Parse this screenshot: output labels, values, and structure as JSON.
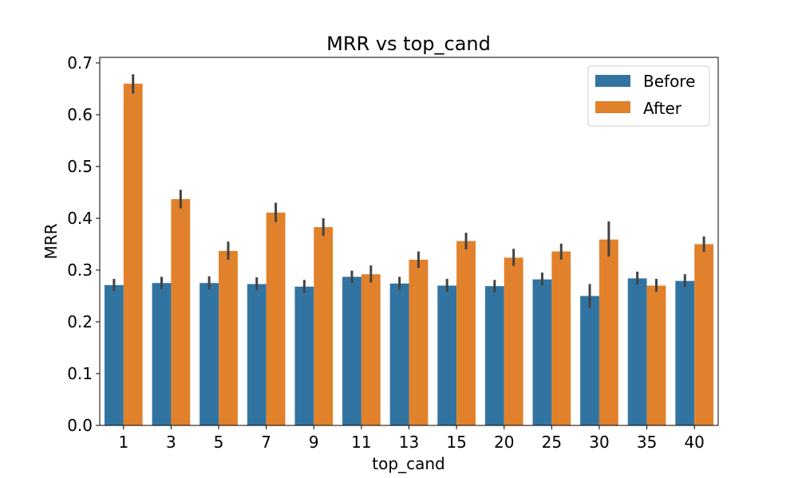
{
  "chart_data": {
    "type": "bar",
    "title": "MRR vs top_cand",
    "xlabel": "top_cand",
    "ylabel": "MRR",
    "ylim": [
      0,
      0.7
    ],
    "yticks": [
      "0.0",
      "0.1",
      "0.2",
      "0.3",
      "0.4",
      "0.5",
      "0.6",
      "0.7"
    ],
    "ytick_values": [
      0,
      0.1,
      0.2,
      0.3,
      0.4,
      0.5,
      0.6,
      0.7
    ],
    "categories": [
      "1",
      "3",
      "5",
      "7",
      "9",
      "11",
      "13",
      "15",
      "20",
      "25",
      "30",
      "35",
      "40"
    ],
    "legend_position": "top-right",
    "grid": false,
    "series": [
      {
        "name": "Before",
        "color": "#3274a1",
        "values": [
          0.271,
          0.275,
          0.275,
          0.273,
          0.268,
          0.287,
          0.274,
          0.27,
          0.269,
          0.282,
          0.25,
          0.284,
          0.279
        ],
        "err_low": [
          0.259,
          0.263,
          0.263,
          0.261,
          0.256,
          0.275,
          0.262,
          0.258,
          0.257,
          0.27,
          0.227,
          0.272,
          0.267
        ],
        "err_high": [
          0.283,
          0.287,
          0.288,
          0.286,
          0.281,
          0.299,
          0.287,
          0.283,
          0.281,
          0.295,
          0.273,
          0.297,
          0.292
        ]
      },
      {
        "name": "After",
        "color": "#e1812c",
        "values": [
          0.66,
          0.437,
          0.337,
          0.411,
          0.383,
          0.292,
          0.32,
          0.356,
          0.324,
          0.336,
          0.359,
          0.27,
          0.35
        ],
        "err_low": [
          0.641,
          0.419,
          0.32,
          0.393,
          0.366,
          0.276,
          0.304,
          0.34,
          0.308,
          0.32,
          0.326,
          0.258,
          0.335
        ],
        "err_high": [
          0.678,
          0.455,
          0.355,
          0.43,
          0.4,
          0.309,
          0.336,
          0.372,
          0.341,
          0.351,
          0.394,
          0.283,
          0.365
        ]
      }
    ]
  }
}
